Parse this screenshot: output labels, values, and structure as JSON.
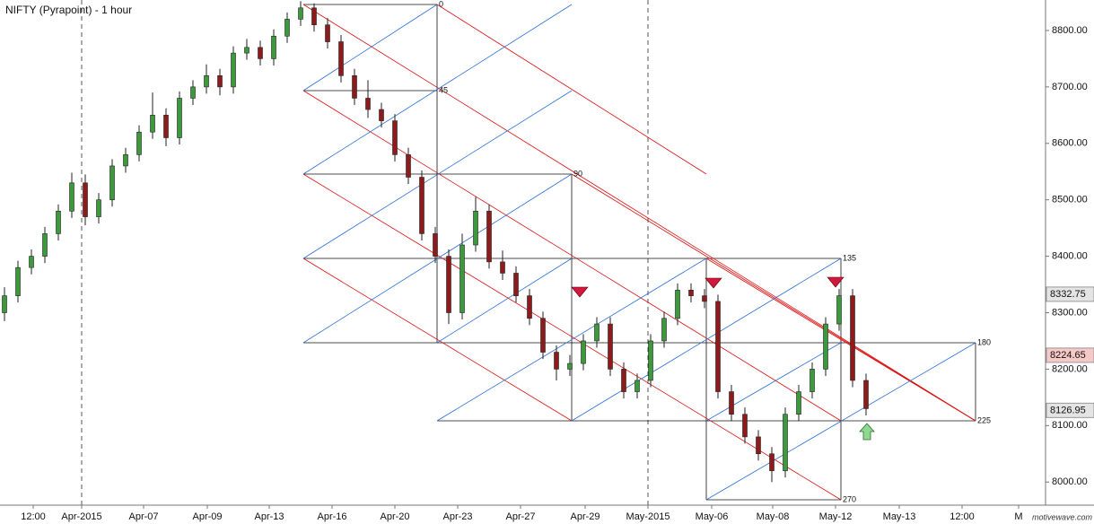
{
  "chart_data": {
    "type": "candlestick",
    "title": "NIFTY (Pyrapoint) - 1 hour",
    "watermark": "motivewave.com",
    "x": [
      0,
      3,
      6,
      9,
      12,
      15,
      18,
      21,
      24,
      27,
      30,
      33,
      36,
      39,
      42,
      45,
      48,
      51,
      54,
      57,
      60,
      63,
      66,
      69,
      72,
      75,
      78,
      81,
      84,
      87,
      90,
      93,
      96,
      99,
      102,
      105,
      108,
      111,
      114,
      117,
      120,
      123,
      126,
      129,
      132,
      135,
      138,
      141,
      144,
      147,
      150,
      153,
      156,
      159,
      162,
      165,
      168,
      171,
      174,
      177,
      180,
      183,
      186,
      189,
      192
    ],
    "open": [
      8300,
      8330,
      8380,
      8400,
      8440,
      8480,
      8530,
      8470,
      8500,
      8560,
      8580,
      8620,
      8650,
      8610,
      8680,
      8700,
      8720,
      8700,
      8760,
      8770,
      8750,
      8790,
      8820,
      8840,
      8810,
      8780,
      8720,
      8680,
      8660,
      8640,
      8580,
      8540,
      8440,
      8400,
      8300,
      8420,
      8480,
      8390,
      8370,
      8330,
      8290,
      8230,
      8200,
      8210,
      8250,
      8280,
      8200,
      8160,
      8180,
      8250,
      8290,
      8340,
      8330,
      8320,
      8160,
      8120,
      8080,
      8050,
      8020,
      8120,
      8160,
      8200,
      8280,
      8330,
      8180
    ],
    "high": [
      8345,
      8392,
      8412,
      8452,
      8492,
      8548,
      8545,
      8512,
      8572,
      8592,
      8632,
      8690,
      8662,
      8692,
      8712,
      8740,
      8732,
      8772,
      8785,
      8782,
      8802,
      8832,
      8852,
      8848,
      8822,
      8792,
      8732,
      8712,
      8672,
      8652,
      8592,
      8552,
      8452,
      8412,
      8440,
      8505,
      8492,
      8410,
      8382,
      8342,
      8302,
      8242,
      8225,
      8262,
      8292,
      8292,
      8212,
      8192,
      8262,
      8302,
      8352,
      8352,
      8342,
      8332,
      8172,
      8132,
      8092,
      8062,
      8132,
      8172,
      8212,
      8292,
      8342,
      8342,
      8192
    ],
    "low": [
      8285,
      8318,
      8368,
      8388,
      8428,
      8468,
      8455,
      8458,
      8488,
      8548,
      8568,
      8608,
      8595,
      8598,
      8668,
      8688,
      8685,
      8688,
      8748,
      8738,
      8738,
      8778,
      8808,
      8798,
      8768,
      8708,
      8668,
      8645,
      8628,
      8568,
      8528,
      8428,
      8388,
      8280,
      8288,
      8408,
      8378,
      8358,
      8318,
      8278,
      8218,
      8180,
      8188,
      8198,
      8238,
      8188,
      8148,
      8148,
      8168,
      8238,
      8278,
      8318,
      8308,
      8148,
      8108,
      8068,
      8038,
      8000,
      8008,
      8108,
      8148,
      8188,
      8268,
      8168,
      8118
    ],
    "close": [
      8330,
      8380,
      8400,
      8440,
      8480,
      8530,
      8470,
      8500,
      8560,
      8580,
      8620,
      8650,
      8610,
      8680,
      8700,
      8720,
      8700,
      8760,
      8770,
      8750,
      8790,
      8820,
      8840,
      8810,
      8780,
      8720,
      8680,
      8660,
      8640,
      8580,
      8540,
      8440,
      8400,
      8300,
      8420,
      8480,
      8390,
      8370,
      8330,
      8290,
      8230,
      8200,
      8210,
      8250,
      8280,
      8200,
      8160,
      8180,
      8250,
      8290,
      8340,
      8330,
      8320,
      8160,
      8120,
      8080,
      8050,
      8020,
      8120,
      8160,
      8200,
      8280,
      8330,
      8180,
      8130
    ],
    "up_color": "#3c9a3c",
    "down_color": "#8e1b1b",
    "xlim": [
      -1,
      232
    ],
    "xticks": [
      {
        "value": 6.4,
        "label": "12:00"
      },
      {
        "value": 17.2,
        "label": "Apr-2015"
      },
      {
        "value": 31,
        "label": "Apr-07"
      },
      {
        "value": 45.2,
        "label": "Apr-09"
      },
      {
        "value": 59,
        "label": "Apr-13"
      },
      {
        "value": 73,
        "label": "Apr-16"
      },
      {
        "value": 87,
        "label": "Apr-20"
      },
      {
        "value": 101,
        "label": "Apr-23"
      },
      {
        "value": 115,
        "label": "Apr-27"
      },
      {
        "value": 129.4,
        "label": "Apr-29"
      },
      {
        "value": 143.4,
        "label": "May-2015"
      },
      {
        "value": 157.6,
        "label": "May-06"
      },
      {
        "value": 171.2,
        "label": "May-08"
      },
      {
        "value": 185.2,
        "label": "May-12"
      },
      {
        "value": 199.4,
        "label": "May-13"
      },
      {
        "value": 213.4,
        "label": "12:00"
      },
      {
        "value": 226,
        "label": "M"
      }
    ],
    "ylim": [
      7959,
      8854
    ],
    "yticks": [
      {
        "value": 8000,
        "label": "8000.00"
      },
      {
        "value": 8100,
        "label": "8100.00"
      },
      {
        "value": 8200,
        "label": "8200.00"
      },
      {
        "value": 8300,
        "label": "8300.00"
      },
      {
        "value": 8400,
        "label": "8400.00"
      },
      {
        "value": 8500,
        "label": "8500.00"
      },
      {
        "value": 8600,
        "label": "8600.00"
      },
      {
        "value": 8700,
        "label": "8700.00"
      },
      {
        "value": 8800,
        "label": "8800.00"
      }
    ],
    "price_markers": [
      {
        "value": 8332.75,
        "color": "#e4e4e4"
      },
      {
        "value": 8224.65,
        "color": "#f6c8c8"
      },
      {
        "value": 8126.95,
        "color": "#e4e4e4"
      }
    ],
    "gann_labels": [
      0,
      45,
      90,
      135,
      180,
      225,
      270
    ]
  }
}
